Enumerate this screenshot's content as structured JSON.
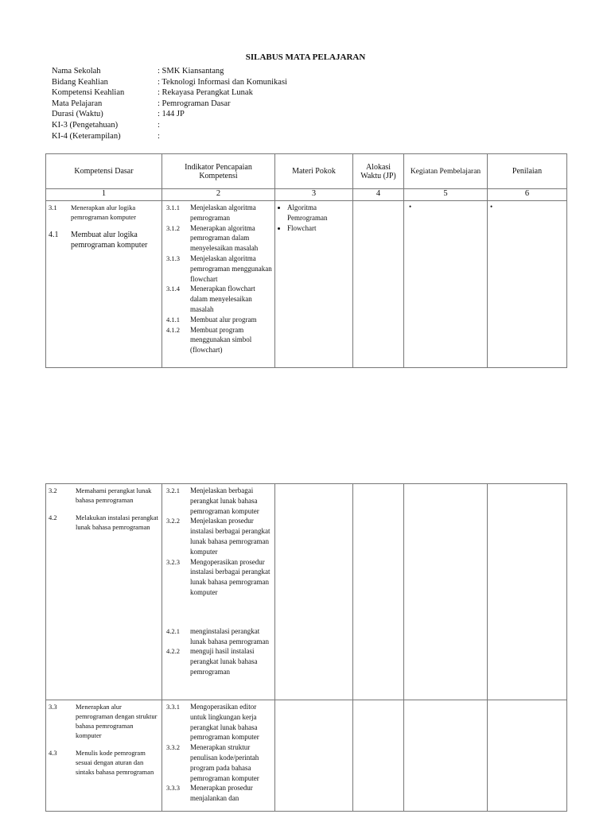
{
  "title": "SILABUS MATA PELAJARAN",
  "info": [
    {
      "label": "Nama Sekolah",
      "value": ": SMK Kiansantang"
    },
    {
      "label": "Bidang Keahlian",
      "value": ": Teknologi Informasi dan Komunikasi"
    },
    {
      "label": "Kompetensi Keahlian",
      "value": ": Rekayasa Perangkat Lunak"
    },
    {
      "label": "Mata Pelajaran",
      "value": ": Pemrograman Dasar"
    },
    {
      "label": "Durasi (Waktu)",
      "value": ": 144 JP"
    },
    {
      "label": "KI-3 (Pengetahuan)",
      "value": ":"
    },
    {
      "label": "KI-4 (Keterampilan)",
      "value": ":"
    }
  ],
  "headers": [
    "Kompetensi Dasar",
    "Indikator Pencapaian Kompetensi",
    "Materi Pokok",
    "Alokasi Waktu (JP)",
    "Kegiatan Pembelajaran",
    "Penilaian"
  ],
  "numbers": [
    "1",
    "2",
    "3",
    "4",
    "5",
    "6"
  ],
  "row1": {
    "kd": [
      {
        "code": "3.1",
        "text": "Menerapkan alur logika pemrograman komputer"
      },
      {
        "code": "4.1",
        "text": "Membuat alur logika pemrograman komputer"
      }
    ],
    "ind": [
      {
        "code": "3.1.1",
        "text": "Menjelaskan algoritma pemrograman"
      },
      {
        "code": "3.1.2",
        "text": "Menerapkan algoritma pemrograman dalam menyelesaikan masalah"
      },
      {
        "code": "3.1.3",
        "text": "Menjelaskan algoritma pemrograman menggunakan flowchart"
      },
      {
        "code": "3.1.4",
        "text": "Menerapkan flowchart dalam menyelesaikan masalah"
      },
      {
        "code": "4.1.1",
        "text": "Membuat alur program"
      },
      {
        "code": "4.1.2",
        "text": "Membuat program menggunakan simbol (flowchart)"
      }
    ],
    "materi": [
      "Algoritma Pemrograman",
      "Flowchart"
    ],
    "bullet": "•"
  },
  "row2": {
    "kd": [
      {
        "code": "3.2",
        "text": "Memahami perangkat lunak bahasa pemrograman"
      },
      {
        "code": "4.2",
        "text": "Melakukan instalasi perangkat lunak bahasa pemrograman"
      }
    ],
    "ind": [
      {
        "code": "3.2.1",
        "text": "Menjelaskan berbagai perangkat lunak bahasa pemrograman komputer"
      },
      {
        "code": "3.2.2",
        "text": "Menjelaskan prosedur instalasi berbagai perangkat lunak bahasa pemrograman komputer"
      },
      {
        "code": "3.2.3",
        "text": "Mengoperasikan prosedur instalasi berbagai perangkat lunak bahasa pemrograman komputer"
      },
      {
        "code": "4.2.1",
        "text": "menginstalasi perangkat lunak bahasa pemrograman"
      },
      {
        "code": "4.2.2",
        "text": "menguji hasil instalasi perangkat lunak bahasa pemrograman"
      }
    ]
  },
  "row3": {
    "kd": [
      {
        "code": "3.3",
        "text": "Menerapkan alur pemrograman dengan struktur bahasa pemrograman komputer"
      },
      {
        "code": "4.3",
        "text": "Menulis kode pemrogram sesuai dengan aturan dan sintaks bahasa pemrograman"
      }
    ],
    "ind": [
      {
        "code": "3.3.1",
        "text": "Mengoperasikan editor untuk lingkungan kerja perangkat lunak bahasa pemrograman komputer"
      },
      {
        "code": "3.3.2",
        "text": "Menerapkan struktur penulisan kode/perintah program pada bahasa pemrograman komputer"
      },
      {
        "code": "3.3.3",
        "text": "Menerapkan prosedur menjalankan dan"
      }
    ]
  }
}
